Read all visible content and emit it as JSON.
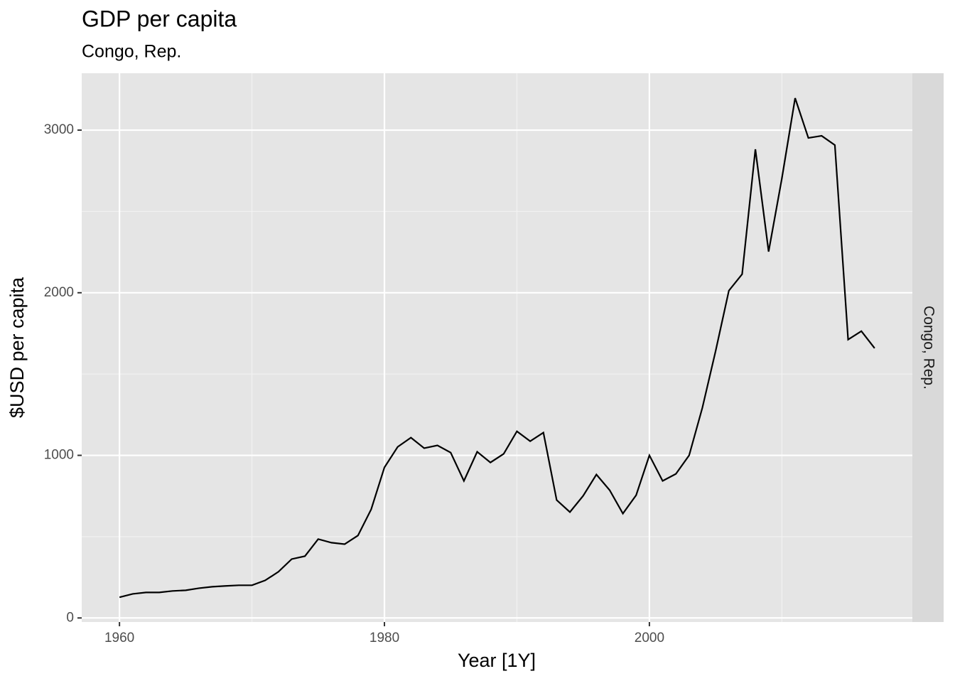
{
  "chart_data": {
    "type": "line",
    "title": "GDP per capita",
    "subtitle": "Congo, Rep.",
    "facet_label": "Congo, Rep.",
    "x_label": "Year [1Y]",
    "y_label": "$USD per capita",
    "x": [
      1960,
      1961,
      1962,
      1963,
      1964,
      1965,
      1966,
      1967,
      1968,
      1969,
      1970,
      1971,
      1972,
      1973,
      1974,
      1975,
      1976,
      1977,
      1978,
      1979,
      1980,
      1981,
      1982,
      1983,
      1984,
      1985,
      1986,
      1987,
      1988,
      1989,
      1990,
      1991,
      1992,
      1993,
      1994,
      1995,
      1996,
      1997,
      1998,
      1999,
      2000,
      2001,
      2002,
      2003,
      2004,
      2005,
      2006,
      2007,
      2008,
      2009,
      2010,
      2011,
      2012,
      2013,
      2014,
      2015,
      2016,
      2017
    ],
    "series": [
      {
        "name": "Congo, Rep.",
        "color": "#000000",
        "values": [
          127,
          148,
          157,
          157,
          166,
          170,
          183,
          192,
          197,
          201,
          201,
          231,
          284,
          362,
          380,
          485,
          463,
          454,
          507,
          668,
          926,
          1052,
          1109,
          1044,
          1061,
          1017,
          843,
          1022,
          956,
          1009,
          1148,
          1087,
          1140,
          725,
          651,
          751,
          882,
          786,
          642,
          755,
          1000,
          843,
          886,
          1000,
          1293,
          1642,
          2013,
          2114,
          2882,
          2253,
          2703,
          3197,
          2952,
          2965,
          2908,
          1712,
          1764,
          1659
        ]
      }
    ],
    "xlim": [
      1957.15,
      2019.85
    ],
    "xticks": [
      1960,
      1980,
      2000
    ],
    "x_minor_ticks": [
      1970,
      1990,
      2010
    ],
    "ylim": [
      -25,
      3350
    ],
    "yticks": [
      0,
      1000,
      2000,
      3000
    ],
    "y_minor_ticks": [
      500,
      1500,
      2500
    ],
    "grid": true
  }
}
